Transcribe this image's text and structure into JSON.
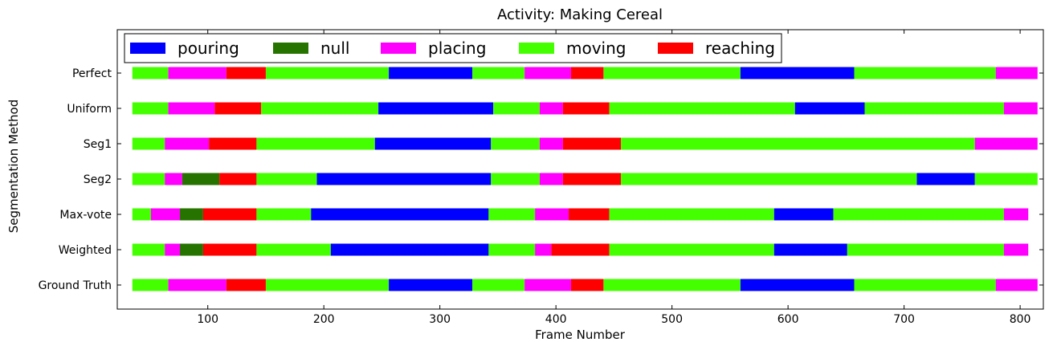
{
  "chart_data": {
    "type": "bar",
    "orientation": "horizontal-stacked-segments",
    "title": "Activity: Making Cereal",
    "xlabel": "Frame Number",
    "ylabel": "Segmentation Method",
    "xlim": [
      22,
      820
    ],
    "xticks": [
      100,
      200,
      300,
      400,
      500,
      600,
      700,
      800
    ],
    "grid": false,
    "legend_position": "top-left",
    "activities": [
      {
        "name": "pouring",
        "color": "#0000ff"
      },
      {
        "name": "null",
        "color": "#267300"
      },
      {
        "name": "placing",
        "color": "#ff00ff"
      },
      {
        "name": "moving",
        "color": "#44ff00"
      },
      {
        "name": "reaching",
        "color": "#ff0000"
      }
    ],
    "rows": [
      {
        "label": "Perfect",
        "segments": [
          {
            "activity": "moving",
            "start": 35,
            "end": 66
          },
          {
            "activity": "placing",
            "start": 66,
            "end": 116
          },
          {
            "activity": "reaching",
            "start": 116,
            "end": 150
          },
          {
            "activity": "moving",
            "start": 150,
            "end": 256
          },
          {
            "activity": "pouring",
            "start": 256,
            "end": 328
          },
          {
            "activity": "moving",
            "start": 328,
            "end": 373
          },
          {
            "activity": "placing",
            "start": 373,
            "end": 413
          },
          {
            "activity": "reaching",
            "start": 413,
            "end": 441
          },
          {
            "activity": "moving",
            "start": 441,
            "end": 559
          },
          {
            "activity": "pouring",
            "start": 559,
            "end": 657
          },
          {
            "activity": "moving",
            "start": 657,
            "end": 779
          },
          {
            "activity": "placing",
            "start": 779,
            "end": 815
          }
        ]
      },
      {
        "label": "Uniform",
        "segments": [
          {
            "activity": "moving",
            "start": 35,
            "end": 66
          },
          {
            "activity": "placing",
            "start": 66,
            "end": 106
          },
          {
            "activity": "reaching",
            "start": 106,
            "end": 146
          },
          {
            "activity": "moving",
            "start": 146,
            "end": 247
          },
          {
            "activity": "pouring",
            "start": 247,
            "end": 346
          },
          {
            "activity": "moving",
            "start": 346,
            "end": 386
          },
          {
            "activity": "placing",
            "start": 386,
            "end": 406
          },
          {
            "activity": "reaching",
            "start": 406,
            "end": 446
          },
          {
            "activity": "moving",
            "start": 446,
            "end": 606
          },
          {
            "activity": "pouring",
            "start": 606,
            "end": 666
          },
          {
            "activity": "moving",
            "start": 666,
            "end": 786
          },
          {
            "activity": "placing",
            "start": 786,
            "end": 815
          }
        ]
      },
      {
        "label": "Seg1",
        "segments": [
          {
            "activity": "moving",
            "start": 35,
            "end": 63
          },
          {
            "activity": "placing",
            "start": 63,
            "end": 101
          },
          {
            "activity": "reaching",
            "start": 101,
            "end": 142
          },
          {
            "activity": "moving",
            "start": 142,
            "end": 244
          },
          {
            "activity": "pouring",
            "start": 244,
            "end": 344
          },
          {
            "activity": "moving",
            "start": 344,
            "end": 386
          },
          {
            "activity": "placing",
            "start": 386,
            "end": 406
          },
          {
            "activity": "reaching",
            "start": 406,
            "end": 456
          },
          {
            "activity": "moving",
            "start": 456,
            "end": 761
          },
          {
            "activity": "placing",
            "start": 761,
            "end": 815
          }
        ]
      },
      {
        "label": "Seg2",
        "segments": [
          {
            "activity": "moving",
            "start": 35,
            "end": 63
          },
          {
            "activity": "placing",
            "start": 63,
            "end": 78
          },
          {
            "activity": "null",
            "start": 78,
            "end": 110
          },
          {
            "activity": "reaching",
            "start": 110,
            "end": 142
          },
          {
            "activity": "moving",
            "start": 142,
            "end": 194
          },
          {
            "activity": "pouring",
            "start": 194,
            "end": 344
          },
          {
            "activity": "moving",
            "start": 344,
            "end": 386
          },
          {
            "activity": "placing",
            "start": 386,
            "end": 406
          },
          {
            "activity": "reaching",
            "start": 406,
            "end": 456
          },
          {
            "activity": "moving",
            "start": 456,
            "end": 711
          },
          {
            "activity": "pouring",
            "start": 711,
            "end": 761
          },
          {
            "activity": "moving",
            "start": 761,
            "end": 815
          }
        ]
      },
      {
        "label": "Max-vote",
        "segments": [
          {
            "activity": "moving",
            "start": 35,
            "end": 51
          },
          {
            "activity": "placing",
            "start": 51,
            "end": 76
          },
          {
            "activity": "null",
            "start": 76,
            "end": 96
          },
          {
            "activity": "reaching",
            "start": 96,
            "end": 142
          },
          {
            "activity": "moving",
            "start": 142,
            "end": 189
          },
          {
            "activity": "pouring",
            "start": 189,
            "end": 342
          },
          {
            "activity": "moving",
            "start": 342,
            "end": 382
          },
          {
            "activity": "placing",
            "start": 382,
            "end": 411
          },
          {
            "activity": "reaching",
            "start": 411,
            "end": 446
          },
          {
            "activity": "moving",
            "start": 446,
            "end": 588
          },
          {
            "activity": "pouring",
            "start": 588,
            "end": 639
          },
          {
            "activity": "moving",
            "start": 639,
            "end": 786
          },
          {
            "activity": "placing",
            "start": 786,
            "end": 807
          }
        ]
      },
      {
        "label": "Weighted",
        "segments": [
          {
            "activity": "moving",
            "start": 35,
            "end": 63
          },
          {
            "activity": "placing",
            "start": 63,
            "end": 76
          },
          {
            "activity": "null",
            "start": 76,
            "end": 96
          },
          {
            "activity": "reaching",
            "start": 96,
            "end": 142
          },
          {
            "activity": "moving",
            "start": 142,
            "end": 206
          },
          {
            "activity": "pouring",
            "start": 206,
            "end": 342
          },
          {
            "activity": "moving",
            "start": 342,
            "end": 382
          },
          {
            "activity": "placing",
            "start": 382,
            "end": 396
          },
          {
            "activity": "reaching",
            "start": 396,
            "end": 446
          },
          {
            "activity": "moving",
            "start": 446,
            "end": 588
          },
          {
            "activity": "pouring",
            "start": 588,
            "end": 651
          },
          {
            "activity": "moving",
            "start": 651,
            "end": 786
          },
          {
            "activity": "placing",
            "start": 786,
            "end": 807
          }
        ]
      },
      {
        "label": "Ground Truth",
        "segments": [
          {
            "activity": "moving",
            "start": 35,
            "end": 66
          },
          {
            "activity": "placing",
            "start": 66,
            "end": 116
          },
          {
            "activity": "reaching",
            "start": 116,
            "end": 150
          },
          {
            "activity": "moving",
            "start": 150,
            "end": 256
          },
          {
            "activity": "pouring",
            "start": 256,
            "end": 328
          },
          {
            "activity": "moving",
            "start": 328,
            "end": 373
          },
          {
            "activity": "placing",
            "start": 373,
            "end": 413
          },
          {
            "activity": "reaching",
            "start": 413,
            "end": 441
          },
          {
            "activity": "moving",
            "start": 441,
            "end": 559
          },
          {
            "activity": "pouring",
            "start": 559,
            "end": 657
          },
          {
            "activity": "moving",
            "start": 657,
            "end": 779
          },
          {
            "activity": "placing",
            "start": 779,
            "end": 815
          }
        ]
      }
    ]
  }
}
